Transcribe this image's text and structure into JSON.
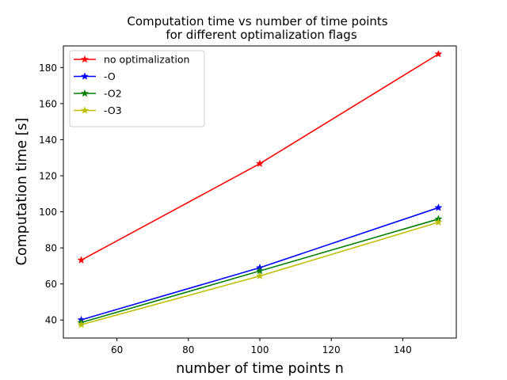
{
  "chart_data": {
    "type": "line",
    "title_lines": [
      "Computation time vs number of time points",
      "for different optimalization flags"
    ],
    "xlabel": "number of time points n",
    "ylabel": "Computation time [s]",
    "x": [
      50,
      100,
      150
    ],
    "xlim": [
      45,
      155
    ],
    "ylim": [
      30,
      192
    ],
    "xticks": [
      60,
      80,
      100,
      120,
      140
    ],
    "yticks": [
      40,
      60,
      80,
      100,
      120,
      140,
      160,
      180
    ],
    "grid": false,
    "legend_position": "top-left",
    "marker": "star",
    "series": [
      {
        "name": "no optimalization",
        "color": "#ff0000",
        "values": [
          73.2,
          126.7,
          187.5
        ]
      },
      {
        "name": "-O",
        "color": "#0000ff",
        "values": [
          40.1,
          69.0,
          102.3
        ]
      },
      {
        "name": "-O2",
        "color": "#008000",
        "values": [
          38.6,
          67.2,
          96.0
        ]
      },
      {
        "name": "-O3",
        "color": "#bfbf00",
        "values": [
          37.4,
          64.4,
          94.2
        ]
      }
    ]
  }
}
